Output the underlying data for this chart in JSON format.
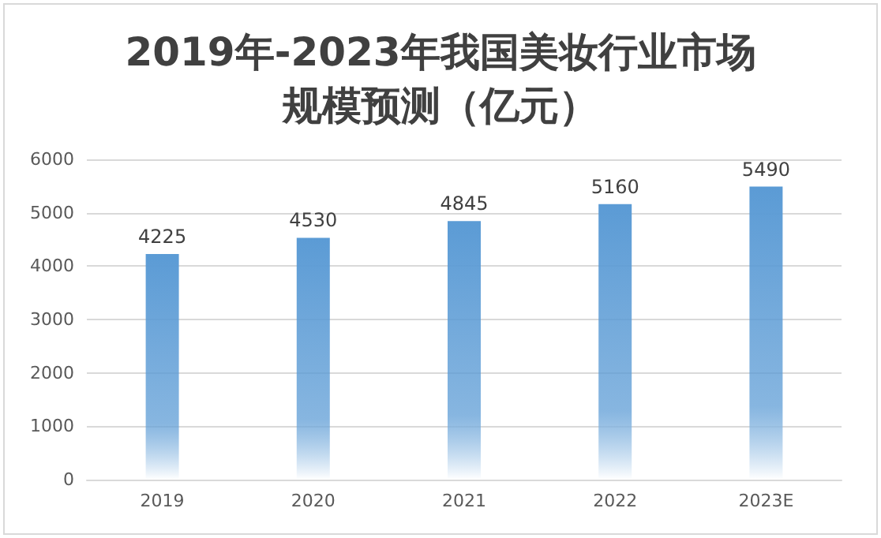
{
  "chart_data": {
    "type": "bar",
    "title": "2019年-2023年我国美妆行业市场规模预测（亿元）",
    "categories": [
      "2019",
      "2020",
      "2021",
      "2022",
      "2023E"
    ],
    "values": [
      4225,
      4530,
      4845,
      5160,
      5490
    ],
    "color": "#5b9bd5",
    "ylim": [
      0,
      6000
    ],
    "yticks": [
      0,
      1000,
      2000,
      3000,
      4000,
      5000,
      6000
    ],
    "grid": "y",
    "data_labels": true
  }
}
